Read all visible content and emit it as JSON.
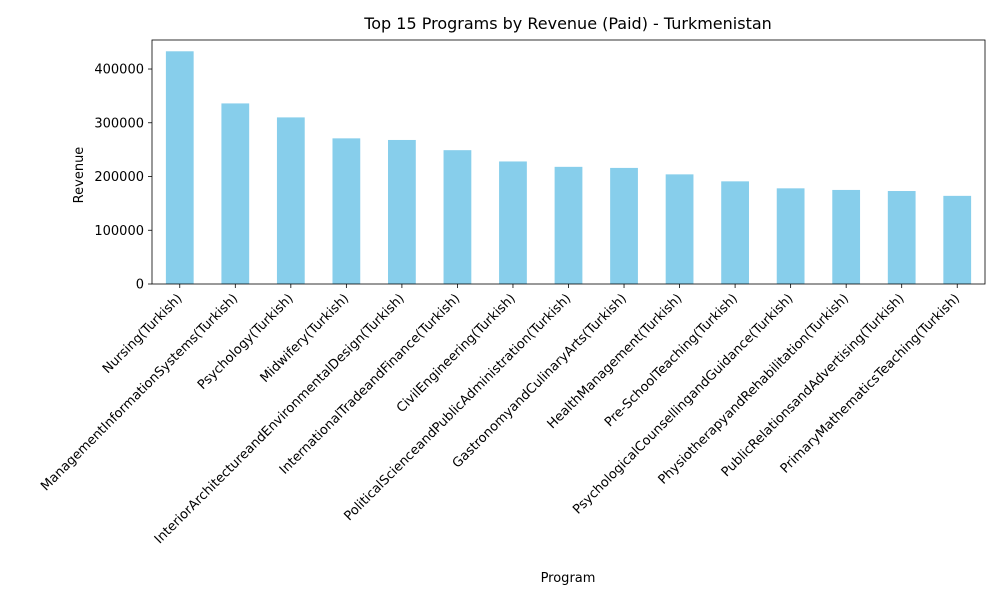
{
  "chart_data": {
    "type": "bar",
    "title": "Top 15 Programs by Revenue (Paid) - Turkmenistan",
    "xlabel": "Program",
    "ylabel": "Revenue",
    "categories": [
      "Nursing(Turkish)",
      "ManagementInformationSystems(Turkish)",
      "Psychology(Turkish)",
      "Midwifery(Turkish)",
      "InteriorArchitectureandEnvironmentalDesign(Turkish)",
      "InternationalTradeandFinance(Turkish)",
      "CivilEngineering(Turkish)",
      "PoliticalScienceandPublicAdministration(Turkish)",
      "GastronomyandCulinaryArts(Turkish)",
      "HealthManagement(Turkish)",
      "Pre-SchoolTeaching(Turkish)",
      "PsychologicalCounsellingandGuidance(Turkish)",
      "PhysiotherapyandRehabilitation(Turkish)",
      "PublicRelationsandAdvertising(Turkish)",
      "PrimaryMathematicsTeaching(Turkish)"
    ],
    "values": [
      433000,
      336000,
      310000,
      271000,
      268000,
      249000,
      228000,
      218000,
      216000,
      204000,
      191000,
      178000,
      175000,
      173000,
      164000
    ],
    "ylim": [
      0,
      454000
    ],
    "yticks": [
      0,
      100000,
      200000,
      300000,
      400000
    ],
    "ytick_labels": [
      "0",
      "100000",
      "200000",
      "300000",
      "400000"
    ],
    "bar_color": "#87CEEB",
    "grid": false,
    "legend": false
  }
}
